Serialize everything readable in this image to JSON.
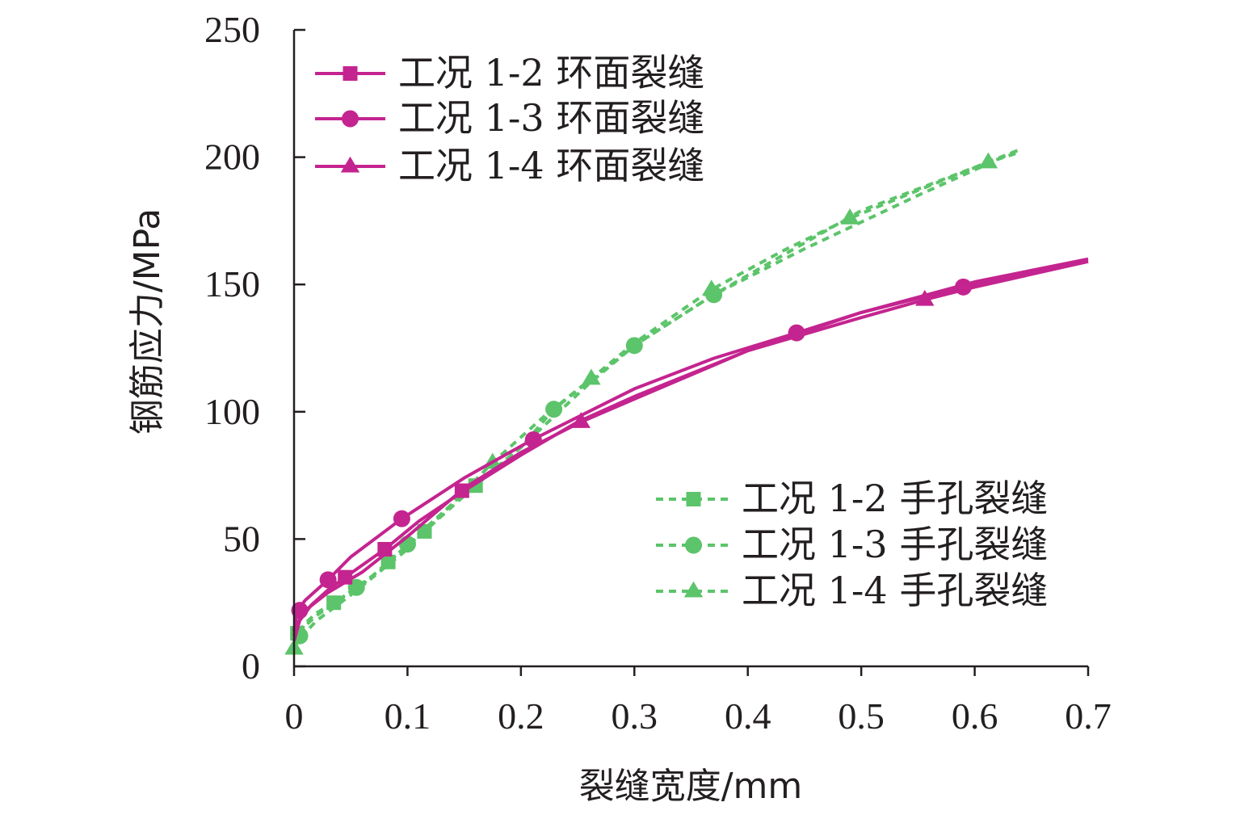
{
  "chart_data": {
    "type": "line",
    "xlabel": "裂缝宽度/mm",
    "ylabel": "钢筋应力/MPa",
    "xlim": [
      0,
      0.7
    ],
    "ylim": [
      0,
      250
    ],
    "xticks": [
      0,
      0.1,
      0.2,
      0.3,
      0.4,
      0.5,
      0.6,
      0.7
    ],
    "xtick_labels": [
      "0",
      "0.1",
      "0.2",
      "0.3",
      "0.4",
      "0.5",
      "0.6",
      "0.7"
    ],
    "yticks": [
      0,
      50,
      100,
      150,
      200,
      250
    ],
    "ytick_labels": [
      "0",
      "50",
      "100",
      "150",
      "200",
      "250"
    ],
    "grid": false,
    "colors": {
      "ring": "#c4248f",
      "hand": "#5cc46a",
      "axis": "#231f20"
    },
    "legends": [
      {
        "position": "top-left",
        "entries": [
          "工况 1-2 环面裂缝",
          "工况 1-3 环面裂缝",
          "工况 1-4 环面裂缝"
        ]
      },
      {
        "position": "bottom-right",
        "entries": [
          "工况 1-2 手孔裂缝",
          "工况 1-3 手孔裂缝",
          "工况 1-4 手孔裂缝"
        ]
      }
    ],
    "series": [
      {
        "name": "工况 1-2 环面裂缝",
        "color": "#c4248f",
        "style": "solid",
        "marker": "square",
        "x": [
          0.0,
          0.005,
          0.015,
          0.03,
          0.045,
          0.08,
          0.11,
          0.15,
          0.2,
          0.25,
          0.3,
          0.4,
          0.5,
          0.6,
          0.7
        ],
        "y": [
          10,
          18,
          24,
          30,
          35,
          46,
          57,
          69,
          83,
          96,
          106,
          124,
          139,
          151,
          160
        ],
        "markers_x": [
          0.045,
          0.08,
          0.148
        ],
        "markers_y": [
          35,
          46,
          69
        ]
      },
      {
        "name": "工况 1-3 环面裂缝",
        "color": "#c4248f",
        "style": "solid",
        "marker": "circle",
        "x": [
          0.0,
          0.003,
          0.01,
          0.03,
          0.05,
          0.095,
          0.15,
          0.21,
          0.3,
          0.37,
          0.443,
          0.5,
          0.59,
          0.7
        ],
        "y": [
          14,
          22,
          26,
          34,
          43,
          58,
          74,
          89,
          109,
          121,
          131,
          139,
          149,
          159
        ],
        "markers_x": [
          0.005,
          0.03,
          0.095,
          0.211,
          0.443,
          0.59
        ],
        "markers_y": [
          22,
          34,
          58,
          89,
          131,
          149
        ]
      },
      {
        "name": "工况 1-4 环面裂缝",
        "color": "#c4248f",
        "style": "solid",
        "marker": "triangle",
        "x": [
          0.0,
          0.003,
          0.01,
          0.03,
          0.06,
          0.1,
          0.15,
          0.2,
          0.253,
          0.3,
          0.4,
          0.5,
          0.556,
          0.6,
          0.7
        ],
        "y": [
          12,
          17,
          22,
          29,
          37,
          51,
          70,
          84,
          96,
          105,
          124,
          137,
          144,
          149,
          159
        ],
        "markers_x": [
          0.253,
          0.556
        ],
        "markers_y": [
          96,
          144
        ]
      },
      {
        "name": "工况 1-2 手孔裂缝",
        "color": "#5cc46a",
        "style": "dashed",
        "marker": "square",
        "x": [
          0.0,
          0.003,
          0.01,
          0.02,
          0.035,
          0.06,
          0.083,
          0.115,
          0.16,
          0.2,
          0.26,
          0.3,
          0.37,
          0.5,
          0.6,
          0.64
        ],
        "y": [
          9,
          13,
          17,
          21,
          25,
          32,
          41,
          53,
          71,
          86,
          111,
          126,
          146,
          179,
          196,
          203
        ],
        "markers_x": [
          0.003,
          0.035,
          0.083,
          0.115,
          0.16
        ],
        "markers_y": [
          13,
          25,
          41,
          53,
          71
        ]
      },
      {
        "name": "工况 1-3 手孔裂缝",
        "color": "#5cc46a",
        "style": "dashed",
        "marker": "circle",
        "x": [
          0.0,
          0.005,
          0.01,
          0.02,
          0.055,
          0.08,
          0.1,
          0.15,
          0.2,
          0.229,
          0.3,
          0.37,
          0.45,
          0.55,
          0.64
        ],
        "y": [
          8,
          12,
          16,
          20,
          31,
          39,
          48,
          68,
          86,
          101,
          126,
          146,
          164,
          185,
          203
        ],
        "markers_x": [
          0.005,
          0.055,
          0.1,
          0.229,
          0.3,
          0.37
        ],
        "markers_y": [
          12,
          31,
          48,
          101,
          126,
          146
        ]
      },
      {
        "name": "工况 1-4 手孔裂缝",
        "color": "#5cc46a",
        "style": "dashed",
        "marker": "triangle",
        "x": [
          0.0,
          0.005,
          0.02,
          0.05,
          0.1,
          0.175,
          0.22,
          0.262,
          0.3,
          0.368,
          0.43,
          0.49,
          0.55,
          0.612,
          0.64
        ],
        "y": [
          7,
          11,
          18,
          28,
          46,
          80,
          98,
          113,
          127,
          148,
          163,
          176,
          187,
          198,
          202
        ],
        "markers_x": [
          0.0,
          0.175,
          0.262,
          0.368,
          0.49,
          0.612
        ],
        "markers_y": [
          7,
          80,
          113,
          148,
          176,
          198
        ]
      }
    ]
  }
}
